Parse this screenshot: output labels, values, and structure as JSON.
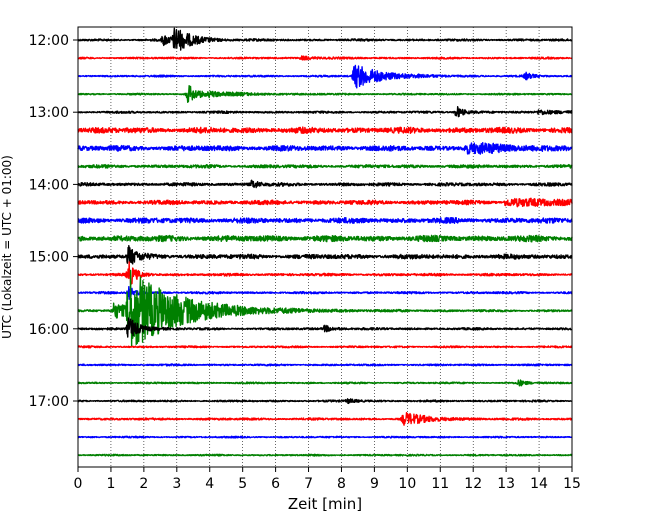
{
  "chart_data": {
    "type": "line",
    "title": "",
    "xlabel": "Zeit  [min]",
    "ylabel": "UTC (Lokalzeit = UTC + 01:00)",
    "xlim": [
      0,
      15
    ],
    "x_ticks": [
      0,
      1,
      2,
      3,
      4,
      5,
      6,
      7,
      8,
      9,
      10,
      11,
      12,
      13,
      14,
      15
    ],
    "y_tick_labels": [
      "12:00",
      "13:00",
      "14:00",
      "15:00",
      "16:00",
      "17:00"
    ],
    "grid": "vertical-dotted",
    "trace_colors": [
      "#000000",
      "#ff0000",
      "#0000ff",
      "#008000"
    ],
    "trace_interval_minutes": 15,
    "start_time": "12:00",
    "traces": [
      {
        "start": "12:00",
        "color": "#000000",
        "noise": 1.2,
        "events": [
          {
            "t": 2.95,
            "amp": 12,
            "dur": 0.5
          },
          {
            "t": 2.6,
            "amp": 5,
            "dur": 0.3
          }
        ]
      },
      {
        "start": "12:15",
        "color": "#ff0000",
        "noise": 1.0,
        "events": [
          {
            "t": 6.8,
            "amp": 2,
            "dur": 0.4
          }
        ]
      },
      {
        "start": "12:30",
        "color": "#0000ff",
        "noise": 1.0,
        "events": [
          {
            "t": 8.4,
            "amp": 12,
            "dur": 0.8
          },
          {
            "t": 13.6,
            "amp": 3,
            "dur": 0.2
          }
        ]
      },
      {
        "start": "12:45",
        "color": "#008000",
        "noise": 0.9,
        "events": [
          {
            "t": 3.35,
            "amp": 9,
            "dur": 0.3
          },
          {
            "t": 4.0,
            "amp": 2,
            "dur": 1.2
          }
        ]
      },
      {
        "start": "13:00",
        "color": "#000000",
        "noise": 1.2,
        "events": [
          {
            "t": 11.5,
            "amp": 6,
            "dur": 0.2
          },
          {
            "t": 14.0,
            "amp": 2,
            "dur": 1.0
          }
        ]
      },
      {
        "start": "13:15",
        "color": "#ff0000",
        "noise": 3.2,
        "events": []
      },
      {
        "start": "13:30",
        "color": "#0000ff",
        "noise": 3.0,
        "events": [
          {
            "t": 11.8,
            "amp": 4,
            "dur": 1.5
          }
        ]
      },
      {
        "start": "13:45",
        "color": "#008000",
        "noise": 1.8,
        "events": []
      },
      {
        "start": "14:00",
        "color": "#000000",
        "noise": 1.8,
        "events": [
          {
            "t": 5.3,
            "amp": 4,
            "dur": 0.2
          }
        ]
      },
      {
        "start": "14:15",
        "color": "#ff0000",
        "noise": 2.4,
        "events": [
          {
            "t": 13.0,
            "amp": 3,
            "dur": 2.0
          }
        ]
      },
      {
        "start": "14:30",
        "color": "#0000ff",
        "noise": 3.0,
        "events": []
      },
      {
        "start": "14:45",
        "color": "#008000",
        "noise": 3.4,
        "events": []
      },
      {
        "start": "15:00",
        "color": "#000000",
        "noise": 2.6,
        "events": [
          {
            "t": 1.55,
            "amp": 10,
            "dur": 0.2
          }
        ]
      },
      {
        "start": "15:15",
        "color": "#ff0000",
        "noise": 1.4,
        "events": [
          {
            "t": 1.55,
            "amp": 12,
            "dur": 0.2
          }
        ]
      },
      {
        "start": "15:30",
        "color": "#0000ff",
        "noise": 1.2,
        "events": [
          {
            "t": 1.55,
            "amp": 6,
            "dur": 0.2
          }
        ]
      },
      {
        "start": "15:45",
        "color": "#008000",
        "noise": 1.2,
        "events": [
          {
            "t": 1.55,
            "amp": 40,
            "dur": 1.5
          },
          {
            "t": 1.1,
            "amp": 8,
            "dur": 0.5
          }
        ]
      },
      {
        "start": "16:00",
        "color": "#000000",
        "noise": 1.2,
        "events": [
          {
            "t": 1.55,
            "amp": 12,
            "dur": 0.3
          },
          {
            "t": 7.5,
            "amp": 3,
            "dur": 0.3
          }
        ]
      },
      {
        "start": "16:15",
        "color": "#ff0000",
        "noise": 1.0,
        "events": []
      },
      {
        "start": "16:30",
        "color": "#0000ff",
        "noise": 1.0,
        "events": []
      },
      {
        "start": "16:45",
        "color": "#008000",
        "noise": 0.9,
        "events": [
          {
            "t": 13.4,
            "amp": 3,
            "dur": 0.2
          }
        ]
      },
      {
        "start": "17:00",
        "color": "#000000",
        "noise": 1.0,
        "events": [
          {
            "t": 8.2,
            "amp": 2,
            "dur": 0.3
          }
        ]
      },
      {
        "start": "17:15",
        "color": "#ff0000",
        "noise": 1.2,
        "events": [
          {
            "t": 9.9,
            "amp": 6,
            "dur": 0.7
          }
        ]
      },
      {
        "start": "17:30",
        "color": "#0000ff",
        "noise": 0.9,
        "events": []
      },
      {
        "start": "17:45",
        "color": "#008000",
        "noise": 0.9,
        "events": []
      }
    ]
  }
}
